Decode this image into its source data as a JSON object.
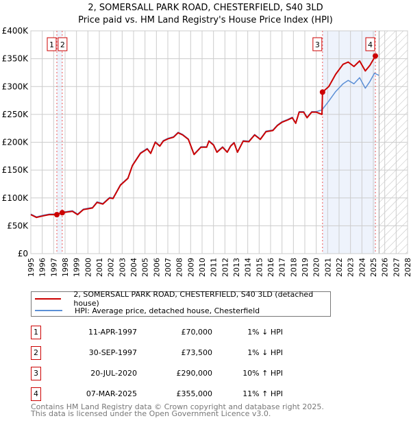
{
  "title": [
    "2, SOMERSALL PARK ROAD, CHESTERFIELD, S40 3LD",
    "Price paid vs. HM Land Registry's House Price Index (HPI)"
  ],
  "chart_data": {
    "type": "line",
    "title": "2, SOMERSALL PARK ROAD, CHESTERFIELD, S40 3LD — Price paid vs. HM Land Registry's House Price Index (HPI)",
    "xlim": [
      1995,
      2028
    ],
    "ylim": [
      0,
      400000
    ],
    "yticks": [
      0,
      50000,
      100000,
      150000,
      200000,
      250000,
      300000,
      350000,
      400000
    ],
    "ytick_labels": [
      "£0",
      "£50K",
      "£100K",
      "£150K",
      "£200K",
      "£250K",
      "£300K",
      "£350K",
      "£400K"
    ],
    "xticks": [
      1995,
      1996,
      1997,
      1998,
      1999,
      2000,
      2001,
      2002,
      2003,
      2004,
      2005,
      2006,
      2007,
      2008,
      2009,
      2010,
      2011,
      2012,
      2013,
      2014,
      2015,
      2016,
      2017,
      2018,
      2019,
      2020,
      2021,
      2022,
      2023,
      2024,
      2025,
      2026,
      2027,
      2028
    ],
    "grid": true,
    "forecast_hatch_from": 2025.5,
    "series": [
      {
        "name": "2, SOMERSALL PARK ROAD, CHESTERFIELD, S40 3LD (detached house)",
        "color": "#cc0000",
        "x": [
          1995.0,
          1995.5,
          1996.1,
          1996.6,
          1997.28,
          1997.75,
          1998.65,
          1999.1,
          1999.6,
          2000.4,
          2000.8,
          2001.3,
          2001.9,
          2002.2,
          2002.85,
          2003.5,
          2003.9,
          2004.6,
          2005.2,
          2005.5,
          2005.9,
          2006.3,
          2006.6,
          2007.0,
          2007.5,
          2007.9,
          2008.3,
          2008.8,
          2009.3,
          2009.9,
          2010.4,
          2010.6,
          2011.0,
          2011.3,
          2011.8,
          2012.2,
          2012.5,
          2012.8,
          2013.1,
          2013.6,
          2014.1,
          2014.6,
          2015.1,
          2015.6,
          2016.2,
          2016.6,
          2017.0,
          2017.5,
          2017.9,
          2018.2,
          2018.5,
          2018.9,
          2019.2,
          2019.6,
          2020.0,
          2020.5,
          2020.55,
          2021.1,
          2021.7,
          2022.35,
          2022.8,
          2023.3,
          2023.8,
          2024.3,
          2024.7,
          2025.18
        ],
        "y": [
          70000,
          65000,
          68000,
          70000,
          70000,
          73500,
          76000,
          70000,
          79000,
          82000,
          92000,
          89000,
          100000,
          99000,
          123000,
          135000,
          158000,
          180000,
          188000,
          180000,
          200000,
          193000,
          202000,
          206000,
          209000,
          217000,
          213000,
          205000,
          178000,
          191000,
          191000,
          202000,
          195000,
          182000,
          191000,
          182000,
          193000,
          199000,
          182000,
          202000,
          201000,
          213000,
          205000,
          219000,
          221000,
          230000,
          236000,
          240000,
          244000,
          234000,
          254000,
          254000,
          244000,
          254000,
          254000,
          250000,
          290000,
          300000,
          322000,
          340000,
          344000,
          336000,
          346000,
          328000,
          338000,
          355000
        ]
      },
      {
        "name": "HPI: Average price, detached house, Chesterfield",
        "color": "#5b8fd6",
        "x": [
          1995.0,
          1995.5,
          1996.1,
          1996.6,
          1997.28,
          1997.75,
          1998.65,
          1999.1,
          1999.6,
          2000.4,
          2000.8,
          2001.3,
          2001.9,
          2002.2,
          2002.85,
          2003.5,
          2003.9,
          2004.6,
          2005.2,
          2005.5,
          2005.9,
          2006.3,
          2006.6,
          2007.0,
          2007.5,
          2007.9,
          2008.3,
          2008.8,
          2009.3,
          2009.9,
          2010.4,
          2010.6,
          2011.0,
          2011.3,
          2011.8,
          2012.2,
          2012.5,
          2012.8,
          2013.1,
          2013.6,
          2014.1,
          2014.6,
          2015.1,
          2015.6,
          2016.2,
          2016.6,
          2017.0,
          2017.5,
          2017.9,
          2018.2,
          2018.5,
          2018.9,
          2019.2,
          2019.6,
          2020.0,
          2020.5,
          2021.1,
          2021.7,
          2022.35,
          2022.8,
          2023.3,
          2023.8,
          2024.3,
          2024.7,
          2025.1,
          2025.5
        ],
        "y": [
          71000,
          66000,
          69000,
          71000,
          71000,
          74500,
          77000,
          71000,
          80000,
          83000,
          93000,
          90000,
          101000,
          100000,
          124000,
          136000,
          159000,
          181000,
          189000,
          181000,
          201000,
          194000,
          203000,
          207000,
          210000,
          218000,
          214000,
          206000,
          179000,
          192000,
          192000,
          203000,
          196000,
          183000,
          192000,
          183000,
          194000,
          200000,
          183000,
          203000,
          202000,
          214000,
          206000,
          220000,
          222000,
          231000,
          237000,
          241000,
          245000,
          235000,
          255000,
          255000,
          245000,
          255000,
          255000,
          258000,
          274000,
          291000,
          305000,
          311000,
          305000,
          316000,
          297000,
          309000,
          324000,
          320000
        ]
      }
    ],
    "sales": [
      {
        "num": "1",
        "x": 1997.28,
        "date": "11-APR-1997",
        "price": 70000,
        "price_label": "£70,000",
        "hpi": "1% ↓ HPI"
      },
      {
        "num": "2",
        "x": 1997.75,
        "date": "30-SEP-1997",
        "price": 73500,
        "price_label": "£73,500",
        "hpi": "1% ↓ HPI"
      },
      {
        "num": "3",
        "x": 2020.55,
        "date": "20-JUL-2020",
        "price": 290000,
        "price_label": "£290,000",
        "hpi": "10% ↑ HPI"
      },
      {
        "num": "4",
        "x": 2025.18,
        "date": "07-MAR-2025",
        "price": 355000,
        "price_label": "£355,000",
        "hpi": "11% ↑ HPI"
      }
    ]
  },
  "legend": [
    "2, SOMERSALL PARK ROAD, CHESTERFIELD, S40 3LD (detached house)",
    "HPI: Average price, detached house, Chesterfield"
  ],
  "footer": [
    "Contains HM Land Registry data © Crown copyright and database right 2025.",
    "This data is licensed under the Open Government Licence v3.0."
  ]
}
